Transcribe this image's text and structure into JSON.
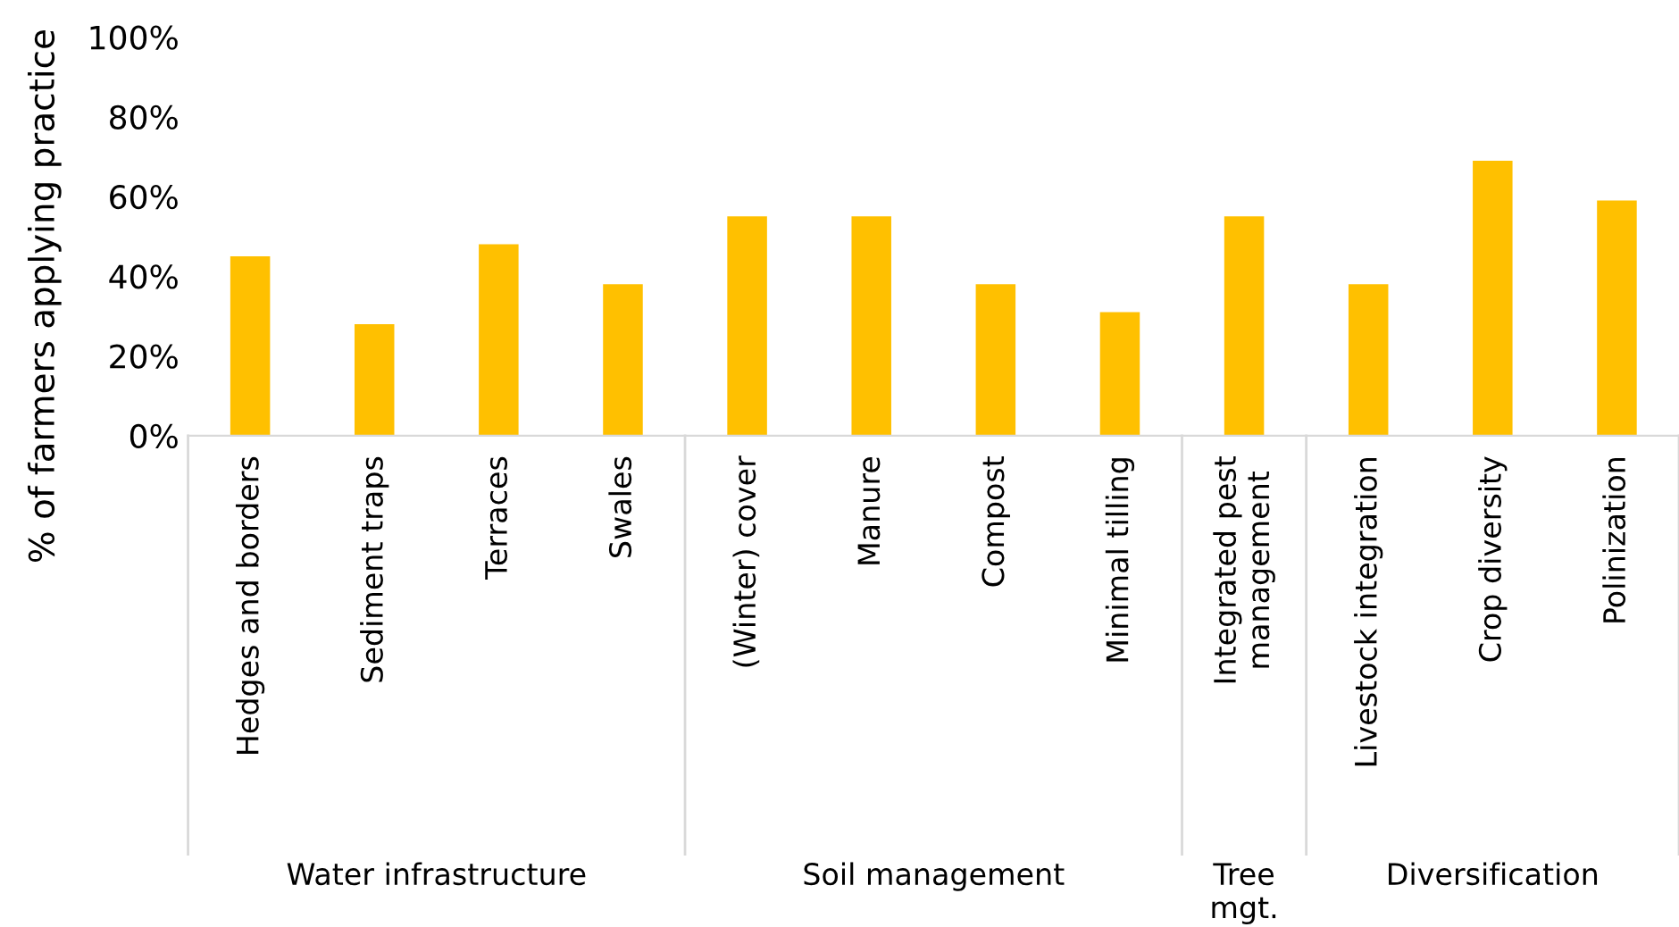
{
  "chart_data": {
    "type": "bar",
    "ylabel": "% of farmers applying practice",
    "categories": [
      "Hedges and borders",
      "Sediment traps",
      "Terraces",
      "Swales",
      "(Winter) cover",
      "Manure",
      "Compost",
      "Minimal tilling",
      "Integrated pest\nmanagement",
      "Livestock integration",
      "Crop diversity",
      "Polinization"
    ],
    "values": [
      45,
      28,
      48,
      38,
      55,
      55,
      38,
      31,
      55,
      38,
      69,
      59
    ],
    "color": "#ffc000",
    "ylim": [
      0,
      100
    ],
    "yticks": [
      {
        "value": 0,
        "label": "0%"
      },
      {
        "value": 20,
        "label": "20%"
      },
      {
        "value": 40,
        "label": "40%"
      },
      {
        "value": 60,
        "label": "60%"
      },
      {
        "value": 80,
        "label": "80%"
      },
      {
        "value": 100,
        "label": "100%"
      }
    ],
    "grid": false,
    "annotations": [
      "Water infrastructure",
      "Soil management",
      "Tree\nmgt.",
      "Diversification"
    ]
  }
}
